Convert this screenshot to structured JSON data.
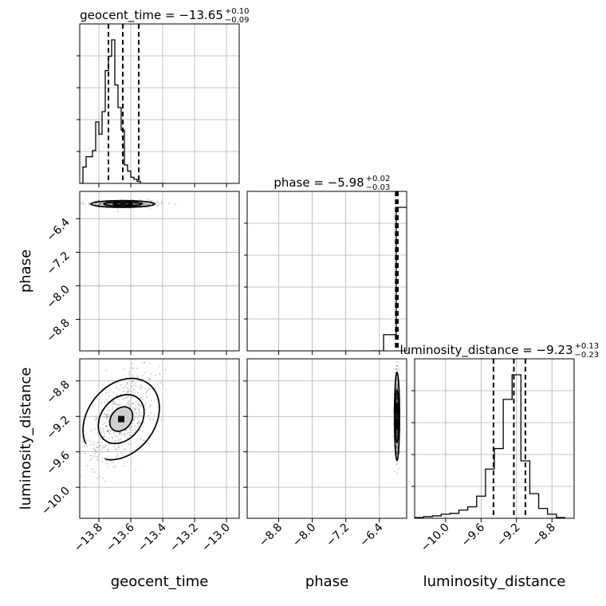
{
  "chart_data": {
    "type": "corner",
    "parameters": [
      "geocent_time",
      "phase",
      "luminosity_distance"
    ],
    "ranges": {
      "geocent_time": [
        -13.92,
        -12.92
      ],
      "phase": [
        -9.55,
        -5.75
      ],
      "luminosity_distance": [
        -10.35,
        -8.55
      ]
    },
    "grid": true,
    "titles": [
      {
        "name": "geocent_time",
        "median": "−13.65",
        "plus": "+0.10",
        "minus": "−0.09"
      },
      {
        "name": "phase",
        "median": "−5.98",
        "plus": "+0.02",
        "minus": "−0.03"
      },
      {
        "name": "luminosity_distance",
        "median": "−9.23",
        "plus": "+0.13",
        "minus": "−0.23"
      }
    ],
    "axis_labels": {
      "x": [
        "geocent_time",
        "phase",
        "luminosity_distance"
      ],
      "y": [
        "phase",
        "luminosity_distance"
      ]
    },
    "ticks": {
      "geocent_time": [
        {
          "v": -13.8,
          "label": "−13.8"
        },
        {
          "v": -13.6,
          "label": "−13.6"
        },
        {
          "v": -13.4,
          "label": "−13.4"
        },
        {
          "v": -13.2,
          "label": "−13.2"
        },
        {
          "v": -13.0,
          "label": "−13.0"
        }
      ],
      "phase": [
        {
          "v": -8.8,
          "label": "−8.8"
        },
        {
          "v": -8.0,
          "label": "−8.0"
        },
        {
          "v": -7.2,
          "label": "−7.2"
        },
        {
          "v": -6.4,
          "label": "−6.4"
        }
      ],
      "luminosity_distance": [
        {
          "v": -10.0,
          "label": "−10.0"
        },
        {
          "v": -9.6,
          "label": "−9.6"
        },
        {
          "v": -9.2,
          "label": "−9.2"
        },
        {
          "v": -8.8,
          "label": "−8.8"
        }
      ]
    },
    "histograms": {
      "geocent_time": {
        "bins": [
          -13.92,
          -13.9,
          -13.88,
          -13.86,
          -13.84,
          -13.82,
          -13.8,
          -13.78,
          -13.76,
          -13.74,
          -13.72,
          -13.7,
          -13.68,
          -13.66,
          -13.64,
          -13.62,
          -13.6,
          -13.58,
          -13.56,
          -13.54,
          -13.52,
          -13.5,
          -13.48,
          -13.46,
          -13.44,
          -13.42,
          -13.4,
          -13.38
        ],
        "counts": [
          0,
          8,
          13,
          13,
          16,
          30,
          24,
          35,
          55,
          62,
          70,
          48,
          37,
          26,
          9,
          6,
          3,
          2,
          1,
          0,
          0,
          0,
          0,
          0,
          0,
          0,
          0
        ],
        "quantiles": [
          -13.74,
          -13.65,
          -13.55
        ]
      },
      "phase": {
        "bins": [
          -6.6,
          -6.3,
          -6.0,
          -5.75
        ],
        "counts": [
          0,
          9,
          80
        ],
        "quantiles": [
          -6.01,
          -5.98,
          -5.96
        ]
      },
      "luminosity_distance": {
        "bins": [
          -10.35,
          -10.25,
          -10.15,
          -10.05,
          -9.95,
          -9.85,
          -9.75,
          -9.65,
          -9.55,
          -9.45,
          -9.35,
          -9.25,
          -9.15,
          -9.05,
          -8.95,
          -8.85,
          -8.75,
          -8.65
        ],
        "counts": [
          1,
          2,
          3,
          5,
          6,
          10,
          14,
          27,
          60,
          85,
          145,
          175,
          70,
          30,
          12,
          5,
          1
        ],
        "quantiles": [
          -9.46,
          -9.23,
          -9.1
        ]
      }
    },
    "joint": [
      {
        "x": "geocent_time",
        "y": "phase",
        "centroid": [
          -13.65,
          -6.05
        ],
        "spread": [
          0.1,
          0.04
        ],
        "corr": 0.0
      },
      {
        "x": "geocent_time",
        "y": "luminosity_distance",
        "centroid": [
          -13.66,
          -9.23
        ],
        "spread": [
          0.1,
          0.27
        ],
        "corr": 0.6
      },
      {
        "x": "phase",
        "y": "luminosity_distance",
        "centroid": [
          -5.98,
          -9.2
        ],
        "spread": [
          0.03,
          0.25
        ],
        "corr": 0.0
      }
    ]
  }
}
